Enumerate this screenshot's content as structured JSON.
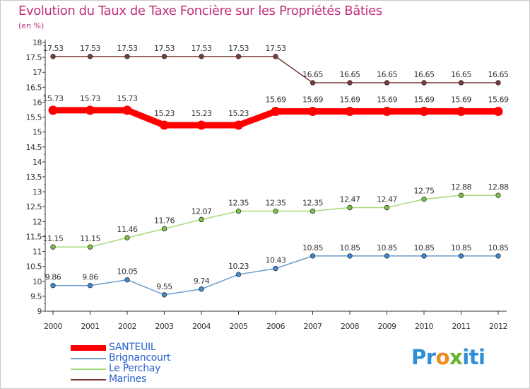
{
  "header": {
    "title": "Evolution du Taux de Taxe Foncière sur les Propriétés Bâties",
    "unit": "(en %)"
  },
  "chart_data": {
    "type": "line",
    "title": "Evolution du Taux de Taxe Foncière sur les Propriétés Bâties",
    "ylabel": "(en %)",
    "xlabel": "",
    "x": [
      "2000",
      "2001",
      "2002",
      "2003",
      "2004",
      "2005",
      "2006",
      "2007",
      "2008",
      "2009",
      "2010",
      "2011",
      "2012"
    ],
    "ylim": [
      9,
      18
    ],
    "y_ticks": [
      "9",
      "9.5",
      "10",
      "10.5",
      "11",
      "11.5",
      "12",
      "12.5",
      "13",
      "13.5",
      "14",
      "14.5",
      "15",
      "15.5",
      "16",
      "16.5",
      "17",
      "17.5",
      "18"
    ],
    "grid": false,
    "legend_position": "bottom-left",
    "series": [
      {
        "name": "SANTEUIL",
        "color": "#ff0000",
        "emphasis": true,
        "values": [
          15.73,
          15.73,
          15.73,
          15.23,
          15.23,
          15.23,
          15.69,
          15.69,
          15.69,
          15.69,
          15.69,
          15.69,
          15.69
        ],
        "labels": [
          "15.73",
          "15.73",
          "15.73",
          "15.23",
          "15.23",
          "15.23",
          "15.69",
          "15.69",
          "15.69",
          "15.69",
          "15.69",
          "15.69",
          "15.69"
        ]
      },
      {
        "name": "Brignancourt",
        "color": "#6a9ccc",
        "marker_color": "#3d8ad6",
        "values": [
          9.86,
          9.86,
          10.05,
          9.55,
          9.74,
          10.23,
          10.43,
          10.85,
          10.85,
          10.85,
          10.85,
          10.85,
          10.85
        ],
        "labels": [
          "9.86",
          "9.86",
          "10.05",
          "9.55",
          "9.74",
          "10.23",
          "10.43",
          "10.85",
          "10.85",
          "10.85",
          "10.85",
          "10.85",
          "10.85"
        ]
      },
      {
        "name": "Le Perchay",
        "color": "#a6d97a",
        "marker_color": "#7cc544",
        "values": [
          11.15,
          11.15,
          11.46,
          11.76,
          12.07,
          12.35,
          12.35,
          12.35,
          12.47,
          12.47,
          12.75,
          12.88,
          12.88
        ],
        "labels": [
          "11.15",
          "11.15",
          "11.46",
          "11.76",
          "12.07",
          "12.35",
          "12.35",
          "12.35",
          "12.47",
          "12.47",
          "12.75",
          "12.88",
          "12.88"
        ]
      },
      {
        "name": "Marines",
        "color": "#7b3a3a",
        "marker_color": "#7b3a3a",
        "values": [
          17.53,
          17.53,
          17.53,
          17.53,
          17.53,
          17.53,
          17.53,
          16.65,
          16.65,
          16.65,
          16.65,
          16.65,
          16.65
        ],
        "labels": [
          "17.53",
          "17.53",
          "17.53",
          "17.53",
          "17.53",
          "17.53",
          "17.53",
          "16.65",
          "16.65",
          "16.65",
          "16.65",
          "16.65",
          "16.65"
        ]
      }
    ]
  },
  "brand": {
    "part1": "Pr",
    "part2": "o",
    "part3": "x",
    "part4": "iti"
  }
}
